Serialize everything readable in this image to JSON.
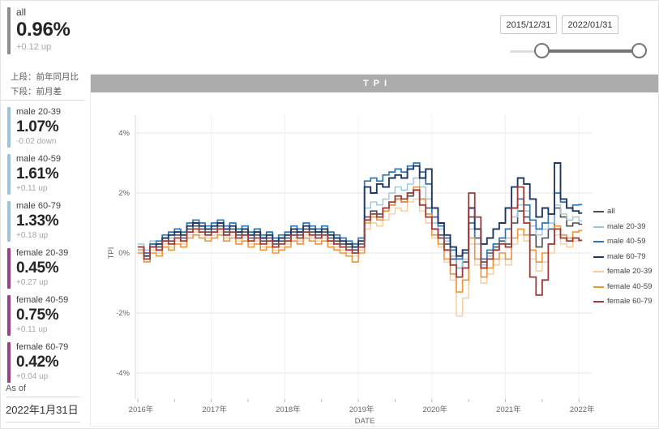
{
  "sidebar": {
    "summary": {
      "label": "all",
      "value": "0.96%",
      "delta": "+0.12 up",
      "bar_color": "#8c8c8c"
    },
    "notes": [
      "上段：前年同月比",
      "下段：前月差"
    ],
    "cards": [
      {
        "label": "male 20-39",
        "value": "1.07%",
        "delta": "-0.02 down",
        "bar_color": "#9dc3dc"
      },
      {
        "label": "male 40-59",
        "value": "1.61%",
        "delta": "+0.11 up",
        "bar_color": "#9dc3dc"
      },
      {
        "label": "male 60-79",
        "value": "1.33%",
        "delta": "+0.18 up",
        "bar_color": "#9dc3dc"
      },
      {
        "label": "female 20-39",
        "value": "0.45%",
        "delta": "+0.27 up",
        "bar_color": "#97418b"
      },
      {
        "label": "female 40-59",
        "value": "0.75%",
        "delta": "+0.11 up",
        "bar_color": "#97418b"
      },
      {
        "label": "female 60-79",
        "value": "0.42%",
        "delta": "+0.04 up",
        "bar_color": "#97418b"
      }
    ],
    "as_of": {
      "label": "As of",
      "value": "2022年1月31日"
    }
  },
  "slicer": {
    "start": "2015/12/31",
    "end": "2022/01/31"
  },
  "chart": {
    "title": "TPI"
  },
  "chart_data": {
    "type": "line",
    "step": true,
    "title": "TPI",
    "xlabel": "DATE",
    "ylabel": "TPI",
    "ylim": [
      -4.8,
      4.8
    ],
    "grid": true,
    "legend_position": "right",
    "x_start": "2016-01",
    "x_interval": "month",
    "x_tick_labels": [
      "2016年",
      "2017年",
      "2018年",
      "2019年",
      "2020年",
      "2021年",
      "2022年"
    ],
    "y_ticks": [
      {
        "v": 4,
        "label": "4%"
      },
      {
        "v": 2,
        "label": "2%"
      },
      {
        "v": 0,
        "label": "0%"
      },
      {
        "v": -2,
        "label": "-2%"
      },
      {
        "v": -4,
        "label": "-4%"
      }
    ],
    "series": [
      {
        "name": "all",
        "color": "#4d4d4d",
        "values": [
          0.2,
          -0.1,
          0.3,
          0.2,
          0.5,
          0.4,
          0.6,
          0.5,
          0.8,
          0.9,
          0.8,
          0.7,
          0.8,
          0.9,
          0.7,
          0.8,
          0.6,
          0.7,
          0.5,
          0.6,
          0.4,
          0.5,
          0.3,
          0.4,
          0.5,
          0.7,
          0.6,
          0.8,
          0.7,
          0.6,
          0.7,
          0.5,
          0.4,
          0.3,
          0.2,
          0.1,
          0.3,
          1.2,
          1.4,
          1.3,
          1.5,
          1.6,
          1.8,
          1.7,
          1.9,
          2.1,
          1.8,
          1.5,
          0.8,
          0.6,
          0.3,
          -0.2,
          -0.5,
          -0.3,
          1.2,
          0.5,
          -0.3,
          0.0,
          0.2,
          0.4,
          0.3,
          1.0,
          1.4,
          1.2,
          0.6,
          0.2,
          0.5,
          0.8,
          1.5,
          1.2,
          0.9,
          1.0,
          0.96
        ]
      },
      {
        "name": "male 20-39",
        "color": "#9dc3dc",
        "values": [
          0.3,
          0.1,
          0.4,
          0.3,
          0.6,
          0.5,
          0.7,
          0.6,
          0.9,
          1.0,
          0.9,
          0.8,
          0.9,
          1.0,
          0.8,
          0.9,
          0.7,
          0.8,
          0.6,
          0.7,
          0.5,
          0.6,
          0.4,
          0.5,
          0.6,
          0.8,
          0.7,
          0.9,
          0.8,
          0.7,
          0.8,
          0.6,
          0.5,
          0.4,
          0.3,
          0.2,
          0.4,
          1.5,
          1.7,
          1.6,
          1.8,
          2.0,
          2.2,
          2.1,
          2.3,
          2.5,
          2.2,
          1.8,
          1.0,
          0.8,
          0.4,
          -0.1,
          -0.5,
          -0.2,
          0.8,
          0.3,
          -0.4,
          -0.1,
          0.1,
          0.3,
          0.5,
          1.2,
          1.6,
          1.4,
          0.9,
          0.6,
          0.8,
          1.0,
          1.6,
          1.3,
          1.1,
          1.2,
          1.07
        ]
      },
      {
        "name": "male 40-59",
        "color": "#2e75b6",
        "values": [
          0.2,
          0.0,
          0.3,
          0.4,
          0.6,
          0.7,
          0.8,
          0.7,
          1.0,
          1.1,
          1.0,
          0.9,
          1.0,
          1.1,
          0.9,
          1.0,
          0.8,
          0.9,
          0.7,
          0.8,
          0.6,
          0.7,
          0.5,
          0.6,
          0.7,
          0.9,
          0.8,
          1.0,
          0.9,
          0.8,
          0.9,
          0.7,
          0.6,
          0.5,
          0.4,
          0.3,
          0.5,
          2.4,
          2.5,
          2.4,
          2.6,
          2.7,
          2.8,
          2.7,
          2.9,
          3.0,
          2.7,
          2.3,
          1.2,
          0.9,
          0.5,
          0.1,
          -0.2,
          0.0,
          1.0,
          0.5,
          -0.2,
          0.1,
          0.3,
          0.5,
          0.8,
          1.5,
          1.8,
          1.6,
          1.1,
          0.8,
          1.0,
          1.3,
          2.0,
          1.7,
          1.5,
          1.6,
          1.61
        ]
      },
      {
        "name": "male 60-79",
        "color": "#203864",
        "values": [
          0.1,
          -0.1,
          0.2,
          0.3,
          0.5,
          0.6,
          0.7,
          0.6,
          0.9,
          1.0,
          0.9,
          0.8,
          0.9,
          1.0,
          0.8,
          0.9,
          0.7,
          0.8,
          0.6,
          0.7,
          0.5,
          0.6,
          0.4,
          0.5,
          0.6,
          0.8,
          0.7,
          0.9,
          0.8,
          0.7,
          0.8,
          0.6,
          0.5,
          0.4,
          0.3,
          0.2,
          0.4,
          2.2,
          2.0,
          2.3,
          2.2,
          2.5,
          2.6,
          2.5,
          2.8,
          2.9,
          2.5,
          2.8,
          1.5,
          1.0,
          0.6,
          0.2,
          -0.1,
          0.1,
          1.5,
          0.8,
          0.3,
          0.5,
          0.8,
          1.0,
          1.5,
          2.2,
          2.5,
          2.3,
          1.8,
          1.2,
          1.5,
          1.3,
          3.0,
          1.8,
          1.5,
          1.4,
          1.33
        ]
      },
      {
        "name": "female 20-39",
        "color": "#f7cba0",
        "values": [
          0.1,
          -0.2,
          0.1,
          0.0,
          0.3,
          0.2,
          0.4,
          0.3,
          0.6,
          0.7,
          0.6,
          0.5,
          0.6,
          0.7,
          0.5,
          0.6,
          0.4,
          0.5,
          0.3,
          0.4,
          0.2,
          0.3,
          0.1,
          0.2,
          0.3,
          0.5,
          0.4,
          0.6,
          0.5,
          0.4,
          0.5,
          0.3,
          0.2,
          0.1,
          0.0,
          -0.1,
          0.1,
          0.8,
          1.0,
          0.9,
          1.1,
          1.3,
          1.5,
          1.4,
          1.7,
          1.8,
          1.4,
          1.0,
          0.5,
          0.2,
          -0.3,
          -0.9,
          -2.1,
          -1.5,
          0.3,
          -0.4,
          -1.0,
          -0.7,
          -0.4,
          -0.2,
          -0.4,
          0.3,
          0.6,
          0.4,
          -0.2,
          -0.6,
          -0.3,
          0.0,
          0.6,
          0.3,
          0.2,
          0.4,
          0.45
        ]
      },
      {
        "name": "female 40-59",
        "color": "#f09438",
        "values": [
          0.0,
          -0.3,
          0.0,
          -0.1,
          0.2,
          0.1,
          0.3,
          0.2,
          0.5,
          0.6,
          0.5,
          0.4,
          0.5,
          0.6,
          0.4,
          0.5,
          0.3,
          0.4,
          0.2,
          0.3,
          0.1,
          0.2,
          0.0,
          0.1,
          0.2,
          0.4,
          0.3,
          0.5,
          0.4,
          0.3,
          0.4,
          0.2,
          0.1,
          0.0,
          -0.1,
          -0.3,
          0.0,
          1.0,
          1.2,
          1.1,
          1.4,
          1.6,
          1.8,
          1.7,
          2.0,
          2.2,
          1.8,
          1.3,
          0.6,
          0.3,
          -0.2,
          -0.7,
          -1.3,
          -0.9,
          0.5,
          -0.2,
          -0.8,
          -0.5,
          -0.2,
          0.0,
          -0.2,
          0.5,
          0.8,
          0.6,
          0.1,
          -0.3,
          0.0,
          0.3,
          0.9,
          0.6,
          0.5,
          0.7,
          0.75
        ]
      },
      {
        "name": "female 60-79",
        "color": "#9e3a38",
        "values": [
          0.2,
          -0.2,
          0.2,
          0.1,
          0.4,
          0.3,
          0.5,
          0.4,
          0.7,
          0.8,
          0.7,
          0.6,
          0.7,
          0.8,
          0.6,
          0.7,
          0.5,
          0.6,
          0.4,
          0.5,
          0.3,
          0.4,
          0.2,
          0.3,
          0.4,
          0.6,
          0.5,
          0.7,
          0.6,
          0.5,
          0.6,
          0.4,
          0.3,
          0.2,
          0.1,
          0.0,
          0.2,
          1.1,
          1.3,
          1.2,
          1.5,
          1.7,
          1.9,
          1.8,
          2.0,
          2.1,
          1.6,
          1.2,
          0.8,
          0.5,
          0.1,
          -0.4,
          -0.8,
          -0.5,
          2.0,
          1.2,
          -0.5,
          -0.2,
          0.1,
          0.3,
          0.2,
          1.5,
          2.2,
          1.0,
          -0.8,
          -1.4,
          -0.9,
          0.3,
          0.8,
          0.5,
          0.4,
          0.5,
          0.42
        ]
      }
    ]
  }
}
